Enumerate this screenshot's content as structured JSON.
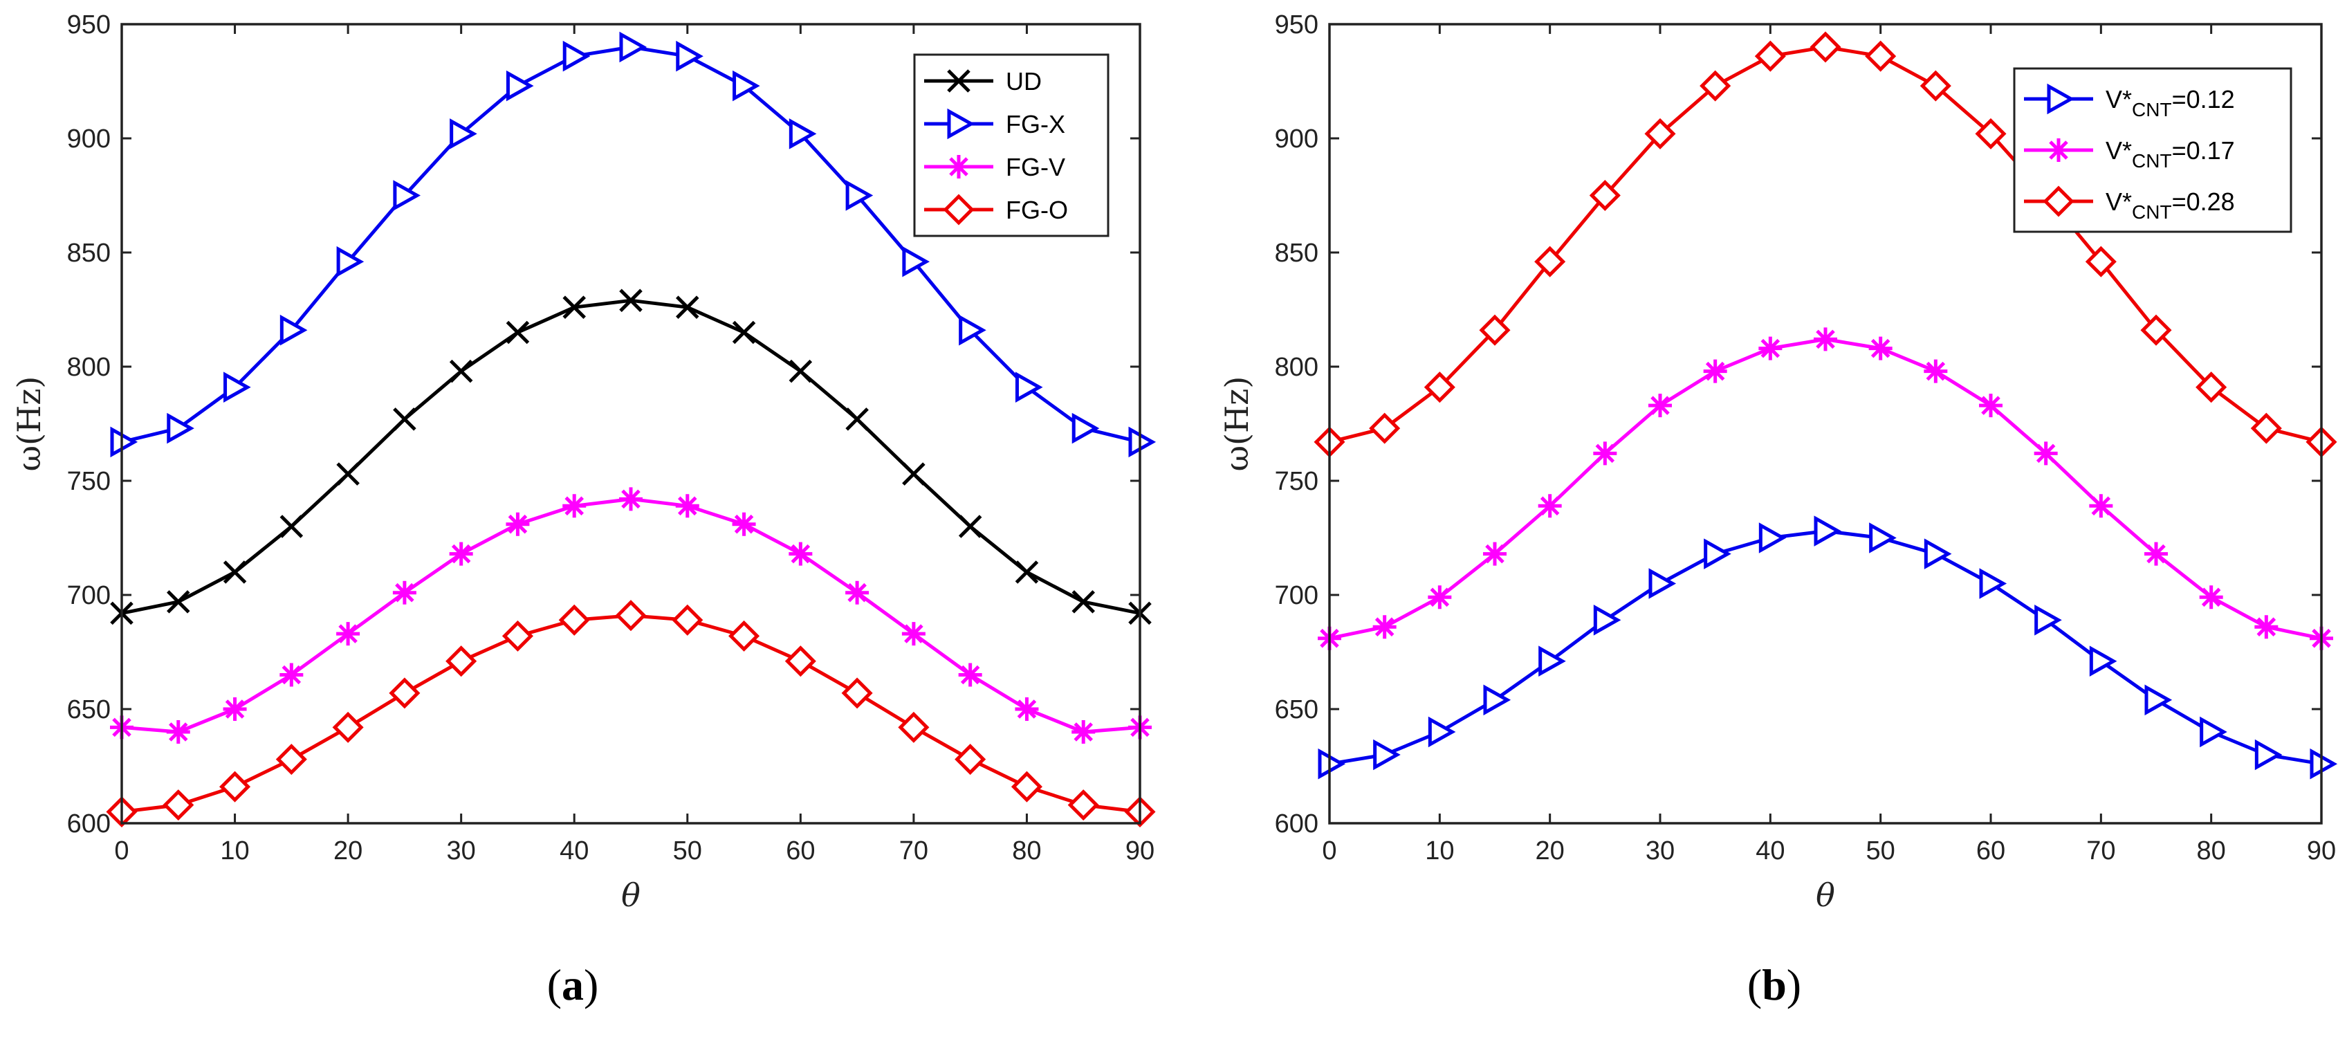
{
  "chart_data": [
    {
      "type": "line",
      "caption": "(a)",
      "caption_letter": "a",
      "xlabel": "θ",
      "ylabel": "ω(Hz)",
      "xlim": [
        0,
        90
      ],
      "ylim": [
        600,
        950
      ],
      "xticks": [
        0,
        10,
        20,
        30,
        40,
        50,
        60,
        70,
        80,
        90
      ],
      "yticks": [
        600,
        650,
        700,
        750,
        800,
        850,
        900,
        950
      ],
      "x": [
        0,
        5,
        10,
        15,
        20,
        25,
        30,
        35,
        40,
        45,
        50,
        55,
        60,
        65,
        70,
        75,
        80,
        85,
        90
      ],
      "legend_position": "top-right",
      "series": [
        {
          "name": "UD",
          "color": "#000000",
          "marker": "x",
          "values": [
            692,
            697,
            710,
            730,
            753,
            777,
            798,
            815,
            826,
            829,
            826,
            815,
            798,
            777,
            753,
            730,
            710,
            697,
            692
          ]
        },
        {
          "name": "FG-X",
          "color": "#0000ee",
          "marker": "triangle-right",
          "values": [
            767,
            773,
            791,
            816,
            846,
            875,
            902,
            923,
            936,
            940,
            936,
            923,
            902,
            875,
            846,
            816,
            791,
            773,
            767
          ]
        },
        {
          "name": "FG-V",
          "color": "#ff00ff",
          "marker": "asterisk",
          "values": [
            642,
            640,
            650,
            665,
            683,
            701,
            718,
            731,
            739,
            742,
            739,
            731,
            718,
            701,
            683,
            665,
            650,
            640,
            642
          ]
        },
        {
          "name": "FG-O",
          "color": "#ee0000",
          "marker": "diamond",
          "values": [
            605,
            608,
            616,
            628,
            642,
            657,
            671,
            682,
            689,
            691,
            689,
            682,
            671,
            657,
            642,
            628,
            616,
            608,
            605
          ]
        }
      ]
    },
    {
      "type": "line",
      "caption": "(b)",
      "caption_letter": "b",
      "xlabel": "θ",
      "ylabel": "ω(Hz)",
      "xlim": [
        0,
        90
      ],
      "ylim": [
        600,
        950
      ],
      "xticks": [
        0,
        10,
        20,
        30,
        40,
        50,
        60,
        70,
        80,
        90
      ],
      "yticks": [
        600,
        650,
        700,
        750,
        800,
        850,
        900,
        950
      ],
      "x": [
        0,
        5,
        10,
        15,
        20,
        25,
        30,
        35,
        40,
        45,
        50,
        55,
        60,
        65,
        70,
        75,
        80,
        85,
        90
      ],
      "legend_position": "top-right",
      "series": [
        {
          "name": "V*CNT=0.12",
          "label_main": "V*",
          "label_sub": "CNT",
          "label_tail": "=0.12",
          "color": "#0000ee",
          "marker": "triangle-right",
          "values": [
            626,
            630,
            640,
            654,
            671,
            689,
            705,
            718,
            725,
            728,
            725,
            718,
            705,
            689,
            671,
            654,
            640,
            630,
            626
          ]
        },
        {
          "name": "V*CNT=0.17",
          "label_main": "V*",
          "label_sub": "CNT",
          "label_tail": "=0.17",
          "color": "#ff00ff",
          "marker": "asterisk",
          "values": [
            681,
            686,
            699,
            718,
            739,
            762,
            783,
            798,
            808,
            812,
            808,
            798,
            783,
            762,
            739,
            718,
            699,
            686,
            681
          ]
        },
        {
          "name": "V*CNT=0.28",
          "label_main": "V*",
          "label_sub": "CNT",
          "label_tail": "=0.28",
          "color": "#ee0000",
          "marker": "diamond",
          "values": [
            767,
            773,
            791,
            816,
            846,
            875,
            902,
            923,
            936,
            940,
            936,
            923,
            902,
            875,
            846,
            816,
            791,
            773,
            767
          ]
        }
      ]
    }
  ]
}
